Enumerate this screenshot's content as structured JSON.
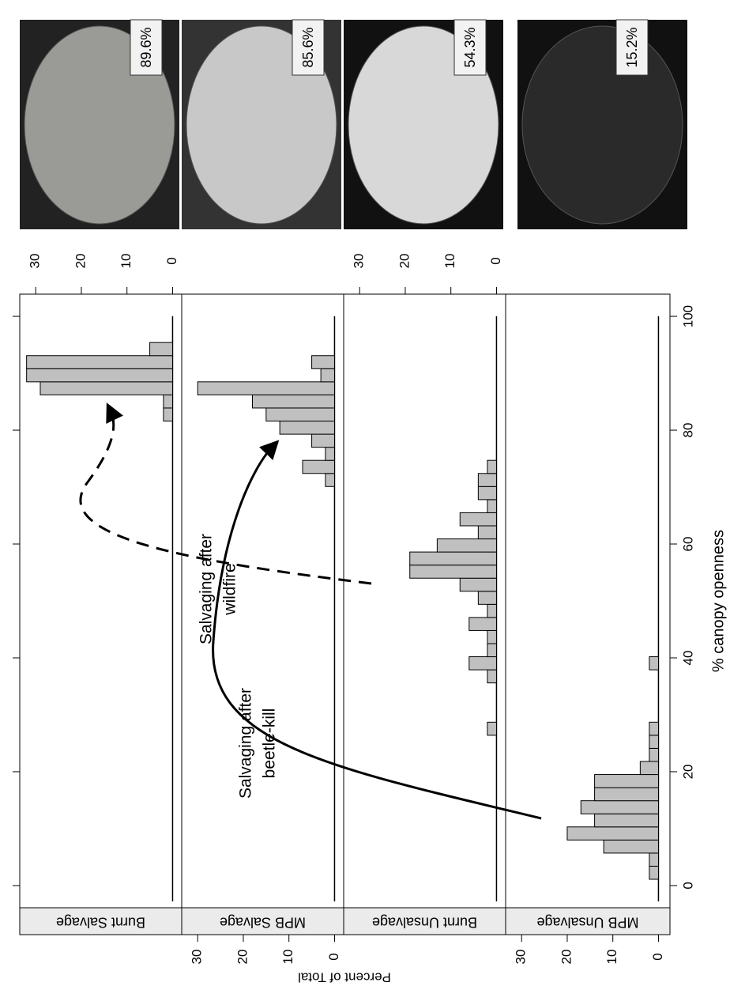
{
  "chart_data": {
    "type": "histogram",
    "xlabel": "% canopy openness",
    "ylabel": "Percent of Total",
    "xlim": [
      -3.9,
      103.9
    ],
    "xticks": [
      0,
      20,
      40,
      60,
      80,
      100
    ],
    "ylim": [
      -2,
      33.5
    ],
    "yticks": [
      0,
      10,
      20,
      30
    ],
    "bins": [
      1.1,
      3.4,
      5.7,
      8.0,
      10.3,
      12.6,
      14.9,
      17.2,
      19.5,
      21.8,
      24.1,
      26.4,
      28.7,
      31.0,
      33.3,
      35.6,
      37.9,
      40.2,
      42.5,
      44.8,
      47.1,
      49.4,
      51.7,
      54.0,
      56.3,
      58.6,
      60.9,
      63.2,
      65.5,
      67.8,
      70.1,
      72.4,
      74.7,
      77.0,
      79.3,
      81.6,
      83.9,
      86.2,
      88.5,
      90.8,
      93.1,
      95.4
    ],
    "series": [
      {
        "name": "Burnt Salvage",
        "color": "#c0c0c0",
        "values": [
          0,
          0,
          0,
          0,
          0,
          0,
          0,
          0,
          0,
          0,
          0,
          0,
          0,
          0,
          0,
          0,
          0,
          0,
          0,
          0,
          0,
          0,
          0,
          0,
          0,
          0,
          0,
          0,
          0,
          0,
          0,
          0,
          0,
          0,
          0,
          2,
          2,
          29,
          32,
          32,
          5
        ]
      },
      {
        "name": "MPB Salvage",
        "color": "#c0c0c0",
        "values": [
          0,
          0,
          0,
          0,
          0,
          0,
          0,
          0,
          0,
          0,
          0,
          0,
          0,
          0,
          0,
          0,
          0,
          0,
          0,
          0,
          0,
          0,
          0,
          0,
          0,
          0,
          0,
          0,
          0,
          0,
          2,
          7,
          2,
          5,
          12,
          15,
          18,
          30,
          3,
          5,
          0
        ]
      },
      {
        "name": "Burnt Unsalvage",
        "color": "#c0c0c0",
        "values": [
          0,
          0,
          0,
          0,
          0,
          0,
          0,
          0,
          0,
          0,
          0,
          2,
          0,
          0,
          0,
          2,
          6,
          2,
          2,
          6,
          2,
          4,
          8,
          19,
          19,
          13,
          4,
          8,
          2,
          4,
          4,
          2,
          0,
          0,
          0,
          0,
          0,
          0,
          0,
          0,
          0
        ]
      },
      {
        "name": "MPB Unsalvage",
        "color": "#c0c0c0",
        "values": [
          2,
          2,
          12,
          20,
          14,
          17,
          14,
          14,
          4,
          2,
          2,
          2,
          0,
          0,
          0,
          0,
          2,
          0,
          0,
          0,
          0,
          0,
          0,
          0,
          0,
          0,
          0,
          0,
          0,
          0,
          0,
          0,
          0,
          0,
          0,
          0,
          0,
          0,
          0,
          0,
          0
        ]
      }
    ],
    "annotations": [
      [
        "Salvaging after",
        "wildfire"
      ],
      [
        "Salvaging after",
        "beetle-kill"
      ]
    ],
    "photo_labels": [
      "89.6%",
      "85.6%",
      "54.3%",
      "15.2%"
    ]
  }
}
